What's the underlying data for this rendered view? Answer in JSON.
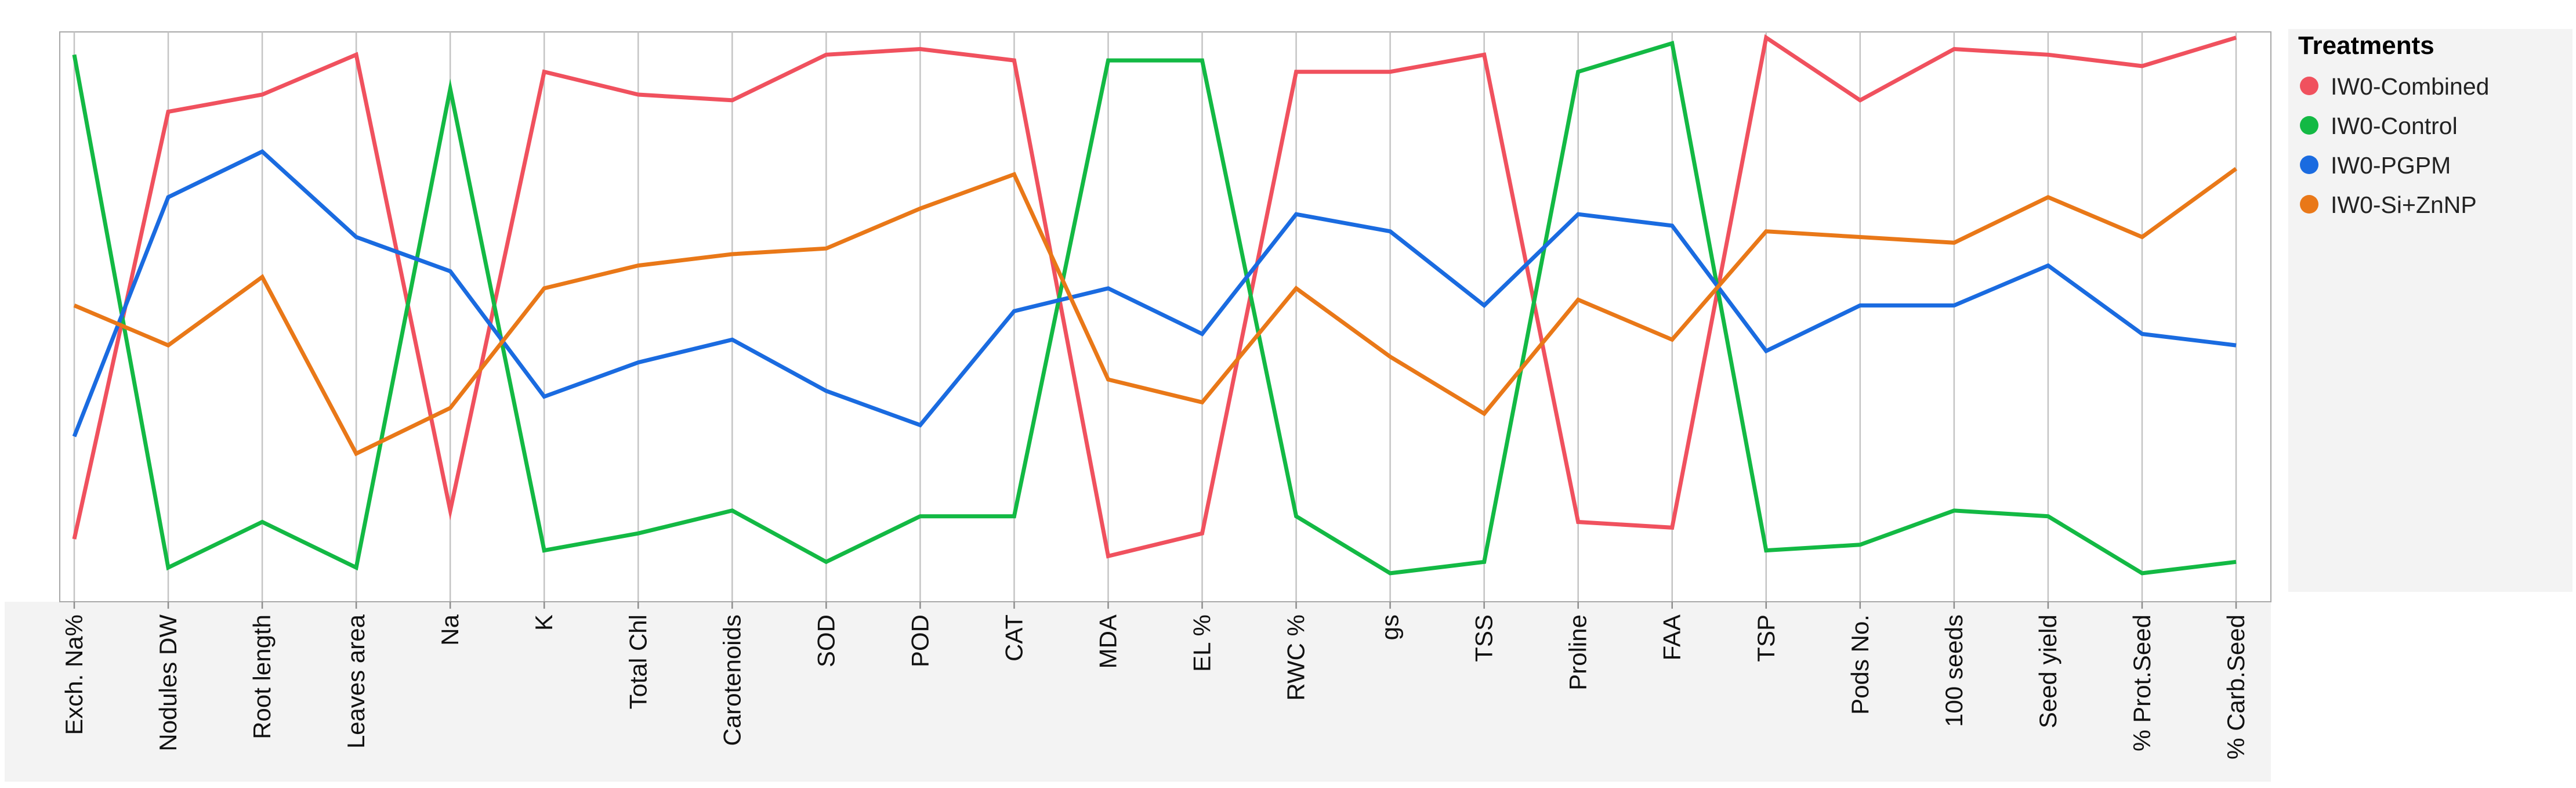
{
  "chart_data": {
    "type": "line",
    "title": "",
    "xlabel": "",
    "ylabel": "",
    "ylim": [
      0,
      1
    ],
    "grid": "vertical",
    "legend_position": "right",
    "legend_title": "Treatments",
    "categories": [
      "Exch. Na%",
      "Nodules DW",
      "Root length",
      "Leaves area",
      "Na",
      "K",
      "Total Chl",
      "Carotenoids",
      "SOD",
      "POD",
      "CAT",
      "MDA",
      "EL %",
      "RWC %",
      "gs",
      "TSS",
      "Proline",
      "FAA",
      "TSP",
      "Pods No.",
      "100 seeds",
      "Seed yield",
      "% Prot.Seed",
      "% Carb.Seed"
    ],
    "series": [
      {
        "name": "IW0-Combined",
        "color": "#f0515e",
        "values": [
          0.11,
          0.86,
          0.89,
          0.96,
          0.16,
          0.93,
          0.89,
          0.88,
          0.96,
          0.97,
          0.95,
          0.08,
          0.12,
          0.93,
          0.93,
          0.96,
          0.14,
          0.13,
          0.99,
          0.88,
          0.97,
          0.96,
          0.94,
          0.99
        ]
      },
      {
        "name": "IW0-Control",
        "color": "#13b944",
        "values": [
          0.96,
          0.06,
          0.14,
          0.06,
          0.9,
          0.09,
          0.12,
          0.16,
          0.07,
          0.15,
          0.15,
          0.95,
          0.95,
          0.15,
          0.05,
          0.07,
          0.93,
          0.98,
          0.09,
          0.1,
          0.16,
          0.15,
          0.05,
          0.07
        ]
      },
      {
        "name": "IW0-PGPM",
        "color": "#1a6be0",
        "values": [
          0.29,
          0.71,
          0.79,
          0.64,
          0.58,
          0.36,
          0.42,
          0.46,
          0.37,
          0.31,
          0.51,
          0.55,
          0.47,
          0.68,
          0.65,
          0.52,
          0.68,
          0.66,
          0.44,
          0.52,
          0.52,
          0.59,
          0.47,
          0.45
        ]
      },
      {
        "name": "IW0-Si+ZnNP",
        "color": "#e97818",
        "values": [
          0.52,
          0.45,
          0.57,
          0.26,
          0.34,
          0.55,
          0.59,
          0.61,
          0.62,
          0.69,
          0.75,
          0.39,
          0.35,
          0.55,
          0.43,
          0.33,
          0.53,
          0.46,
          0.65,
          0.64,
          0.63,
          0.71,
          0.64,
          0.76
        ]
      }
    ]
  }
}
